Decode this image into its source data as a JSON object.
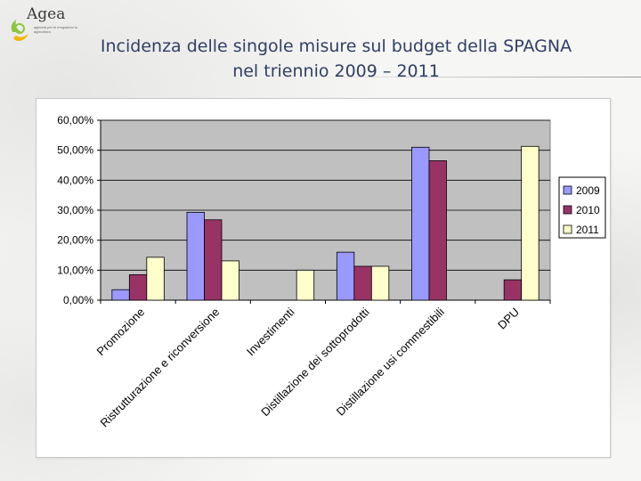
{
  "header": {
    "logo_text": "Agea",
    "logo_subtext": "agenzia per le erogazioni in agricoltura",
    "title_line1": "Incidenza delle singole misure sul budget della SPAGNA",
    "title_line2": "nel triennio 2009 – 2011"
  },
  "colors": {
    "s2009": "#9999ff",
    "s2010": "#993366",
    "s2011": "#ffffcc",
    "plot_bg": "#c0c0c0",
    "title": "#2f3f66"
  },
  "chart_data": {
    "type": "bar",
    "title": "",
    "xlabel": "",
    "ylabel": "",
    "ylim": [
      0,
      60
    ],
    "yticks": [
      0,
      10,
      20,
      30,
      40,
      50,
      60
    ],
    "ytick_labels": [
      "0,00%",
      "10,00%",
      "20,00%",
      "30,00%",
      "40,00%",
      "50,00%",
      "60,00%"
    ],
    "categories": [
      "Promozione",
      "Ristrutturazione e riconversione",
      "Investimenti",
      "Distillazione dei sottoprodotti",
      "Distillazione usi commestibili",
      "DPU"
    ],
    "series": [
      {
        "name": "2009",
        "values": [
          3.5,
          29.3,
          0,
          16.0,
          51.0,
          0
        ]
      },
      {
        "name": "2010",
        "values": [
          8.5,
          26.8,
          0,
          11.3,
          46.5,
          6.8
        ]
      },
      {
        "name": "2011",
        "values": [
          14.3,
          13.1,
          10.0,
          11.3,
          0,
          51.3
        ]
      }
    ],
    "legend_position": "right",
    "grid": true
  }
}
